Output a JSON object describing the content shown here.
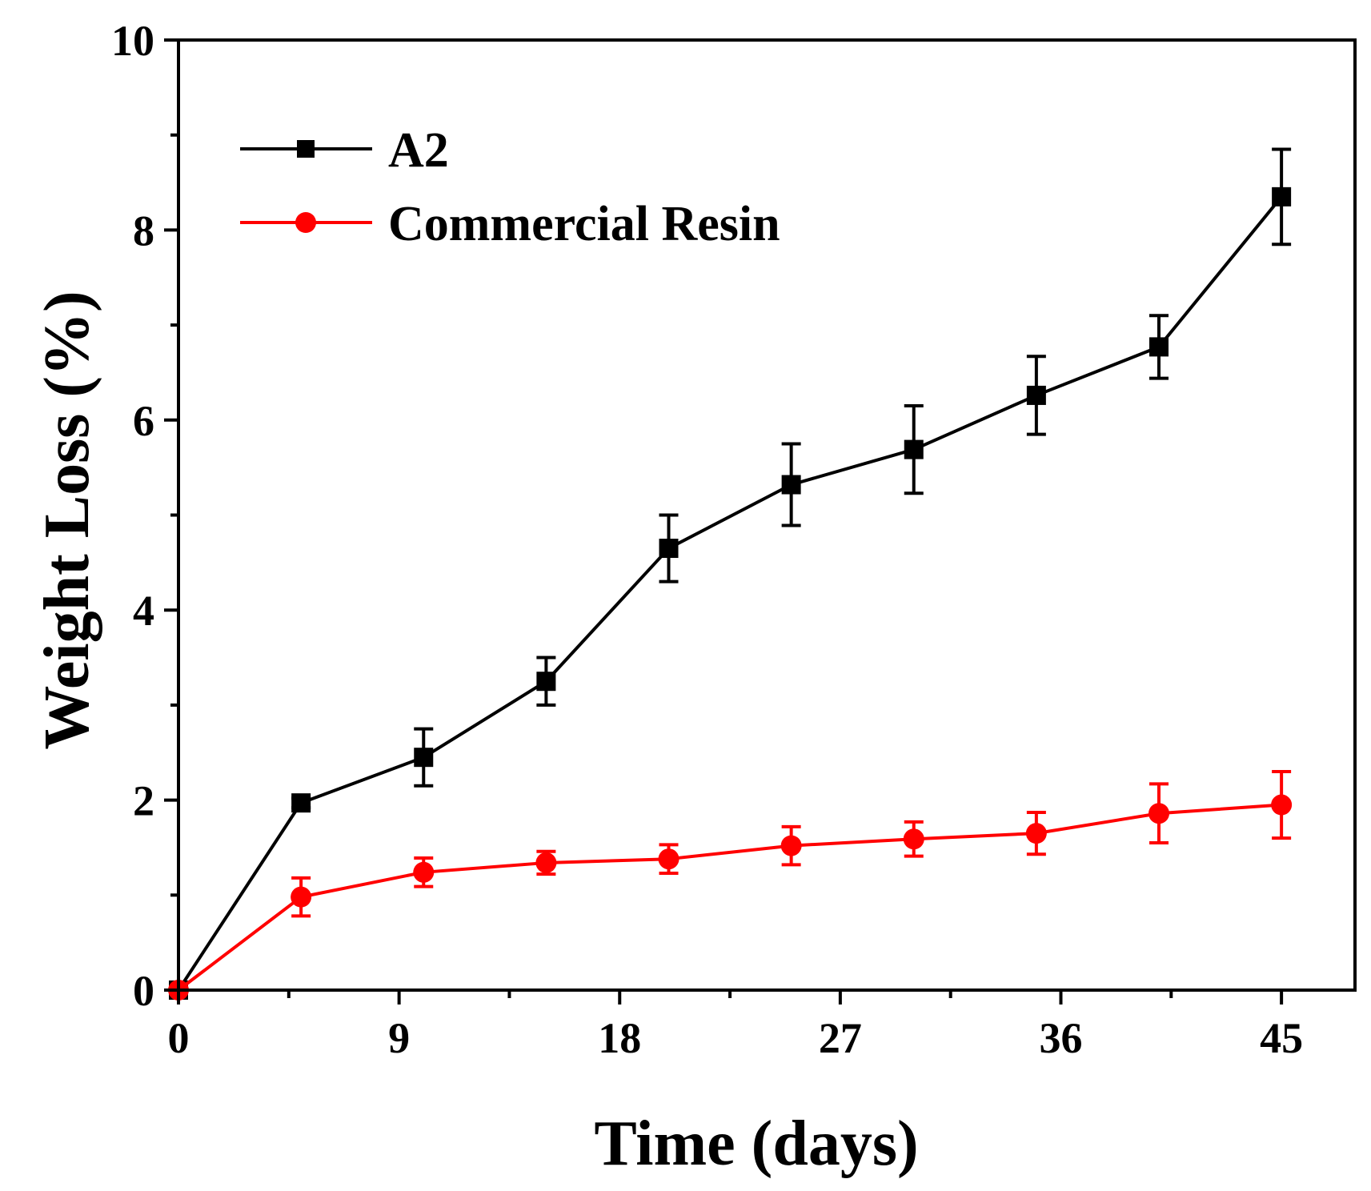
{
  "chart_data": {
    "type": "line",
    "title": "",
    "xlabel": "Time (days)",
    "ylabel": "Weight Loss (%)",
    "xlim": [
      0,
      48
    ],
    "ylim": [
      0,
      10
    ],
    "xticks": [
      0,
      9,
      18,
      27,
      36,
      45
    ],
    "yticks": [
      0,
      2,
      4,
      6,
      8,
      10
    ],
    "grid": false,
    "legend_position": "top-left",
    "series": [
      {
        "name": "A2",
        "color": "#000000",
        "marker": "square",
        "x": [
          0,
          5,
          10,
          15,
          20,
          25,
          30,
          35,
          40,
          45
        ],
        "y": [
          0,
          1.97,
          2.45,
          3.25,
          4.65,
          5.32,
          5.69,
          6.26,
          6.77,
          8.35
        ],
        "err": [
          0,
          0.05,
          0.3,
          0.25,
          0.35,
          0.43,
          0.46,
          0.41,
          0.33,
          0.5
        ]
      },
      {
        "name": "Commercial Resin",
        "color": "#ff0000",
        "marker": "circle",
        "x": [
          0,
          5,
          10,
          15,
          20,
          25,
          30,
          35,
          40,
          45
        ],
        "y": [
          0,
          0.98,
          1.24,
          1.34,
          1.38,
          1.52,
          1.59,
          1.65,
          1.86,
          1.95
        ],
        "err": [
          0,
          0.2,
          0.15,
          0.12,
          0.15,
          0.2,
          0.18,
          0.22,
          0.31,
          0.35
        ]
      }
    ]
  }
}
